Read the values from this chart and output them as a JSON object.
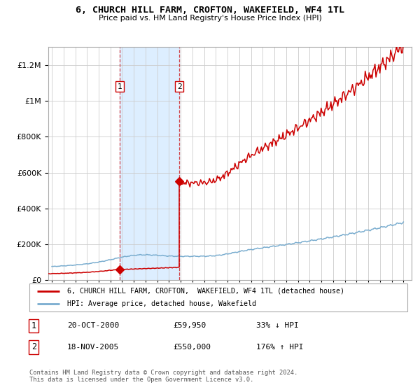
{
  "title": "6, CHURCH HILL FARM, CROFTON, WAKEFIELD, WF4 1TL",
  "subtitle": "Price paid vs. HM Land Registry's House Price Index (HPI)",
  "legend_house": "6, CHURCH HILL FARM, CROFTON,  WAKEFIELD, WF4 1TL (detached house)",
  "legend_hpi": "HPI: Average price, detached house, Wakefield",
  "transaction1_date": "20-OCT-2000",
  "transaction1_price": 59950,
  "transaction1_pct": "33% ↓ HPI",
  "transaction2_date": "18-NOV-2005",
  "transaction2_price": 550000,
  "transaction2_pct": "176% ↑ HPI",
  "footer": "Contains HM Land Registry data © Crown copyright and database right 2024.\nThis data is licensed under the Open Government Licence v3.0.",
  "house_color": "#cc0000",
  "hpi_color": "#7aadcf",
  "bg_color": "#ffffff",
  "grid_color": "#cccccc",
  "shade_color": "#ddeeff",
  "year_start": 1995,
  "year_end": 2025,
  "ylim_max": 1300000,
  "sale1_year": 2000.79,
  "sale1_price": 59950,
  "sale2_year": 2005.87,
  "sale2_price": 550000
}
